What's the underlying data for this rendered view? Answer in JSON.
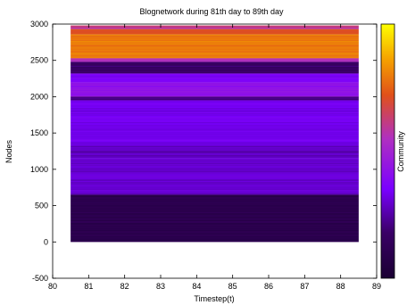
{
  "chart_data": {
    "type": "heatmap",
    "title": "Blognetwork during 81th day to 89th day",
    "xlabel": "Timestep(t)",
    "ylabel": "Nodes",
    "xlim": [
      80,
      89
    ],
    "ylim": [
      -500,
      3000
    ],
    "x_ticks": [
      80,
      81,
      82,
      83,
      84,
      85,
      86,
      87,
      88,
      89
    ],
    "y_ticks": [
      -500,
      0,
      500,
      1000,
      1500,
      2000,
      2500,
      3000
    ],
    "data_x_range": [
      80.5,
      88.5
    ],
    "data_y_range": [
      0,
      2980
    ],
    "colormap": "gnuplot",
    "colors": [
      "#1a0033",
      "#3a0066",
      "#7a00ff",
      "#b030c0",
      "#e0501a",
      "#f5a000",
      "#ffff00"
    ],
    "colorbar": {
      "label": "Community"
    },
    "bands": [
      {
        "y0": 0,
        "y1": 650,
        "level": 0.1
      },
      {
        "y0": 650,
        "y1": 1150,
        "level": 0.3
      },
      {
        "y0": 1150,
        "y1": 1330,
        "level": 0.28
      },
      {
        "y0": 1330,
        "y1": 1950,
        "level": 0.34
      },
      {
        "y0": 1950,
        "y1": 2000,
        "level": 0.2
      },
      {
        "y0": 2000,
        "y1": 2200,
        "level": 0.42
      },
      {
        "y0": 2200,
        "y1": 2320,
        "level": 0.36
      },
      {
        "y0": 2320,
        "y1": 2480,
        "level": 0.18
      },
      {
        "y0": 2480,
        "y1": 2530,
        "level": 0.55
      },
      {
        "y0": 2530,
        "y1": 2860,
        "level": 0.8
      },
      {
        "y0": 2860,
        "y1": 2930,
        "level": 0.72
      },
      {
        "y0": 2930,
        "y1": 2980,
        "level": 0.6
      }
    ]
  }
}
